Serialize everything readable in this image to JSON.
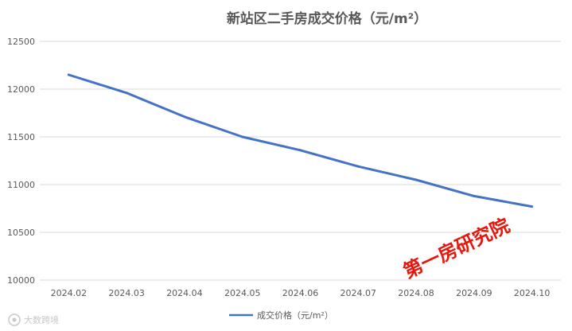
{
  "chart_data": {
    "type": "line",
    "title": "新站区二手房成交价格（元/m²）",
    "categories": [
      "2024.02",
      "2024.03",
      "2024.04",
      "2024.05",
      "2024.06",
      "2024.07",
      "2024.08",
      "2024.09",
      "2024.10"
    ],
    "series": [
      {
        "name": "成交价格（元/m²）",
        "values": [
          12150,
          11960,
          11710,
          11500,
          11360,
          11190,
          11050,
          10880,
          10770
        ],
        "color": "#4472c4"
      }
    ],
    "ylim": [
      10000,
      12500
    ],
    "yticks": [
      10000,
      10500,
      11000,
      11500,
      12000,
      12500
    ],
    "ytick_labels": [
      "10000",
      "10500",
      "11000",
      "11500",
      "12000",
      "12500"
    ],
    "grid": true,
    "legend_position": "bottom"
  },
  "watermark": {
    "text": "第一房研究院",
    "color": "#e8170e"
  },
  "corner_logo": {
    "text": "大数跨境",
    "icon": "camera-logo-icon"
  }
}
